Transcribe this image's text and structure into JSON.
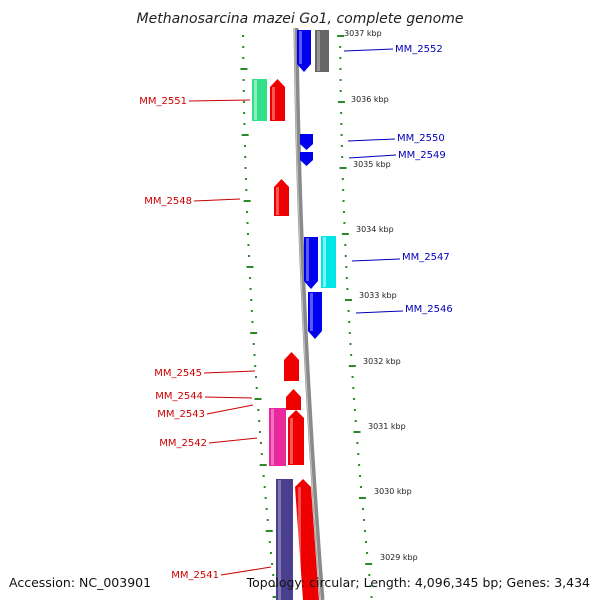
{
  "title": "Methanosarcina mazei Go1, complete genome",
  "footer": {
    "accession": "Accession: NC_003901",
    "topology": "Topology: circular; Length: 4,096,345 bp; Genes: 3,434"
  },
  "colors": {
    "forward_label": "#cc0000",
    "reverse_label": "#0000bb",
    "tick": "#2a8a2a",
    "backbone": "#808080"
  },
  "kbp_marks": [
    {
      "label": "3037 kbp"
    },
    {
      "label": "3036 kbp"
    },
    {
      "label": "3035 kbp"
    },
    {
      "label": "3034 kbp"
    },
    {
      "label": "3033 kbp"
    },
    {
      "label": "3032 kbp"
    },
    {
      "label": "3031 kbp"
    },
    {
      "label": "3030 kbp"
    },
    {
      "label": "3029 kbp"
    }
  ],
  "genes": [
    {
      "label": "MM_2552",
      "strand": "reverse"
    },
    {
      "label": "MM_2551",
      "strand": "forward"
    },
    {
      "label": "MM_2550",
      "strand": "reverse"
    },
    {
      "label": "MM_2549",
      "strand": "reverse"
    },
    {
      "label": "MM_2548",
      "strand": "forward"
    },
    {
      "label": "MM_2547",
      "strand": "reverse"
    },
    {
      "label": "MM_2546",
      "strand": "reverse"
    },
    {
      "label": "MM_2545",
      "strand": "forward"
    },
    {
      "label": "MM_2544",
      "strand": "forward"
    },
    {
      "label": "MM_2543",
      "strand": "forward"
    },
    {
      "label": "MM_2542",
      "strand": "forward"
    },
    {
      "label": "MM_2541",
      "strand": "forward"
    }
  ]
}
